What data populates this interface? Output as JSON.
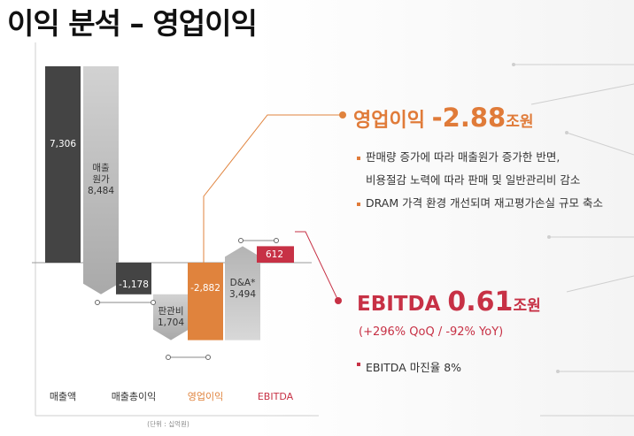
{
  "page": {
    "title": "이익 분석 – 영업이익"
  },
  "chart_data": {
    "type": "waterfall",
    "unit_note": "(단위 : 십억원)",
    "categories": [
      "매출액",
      "매출총이익",
      "영업이익",
      "EBITDA"
    ],
    "steps": [
      {
        "label": "",
        "value": 7306,
        "value_text": "7,306",
        "kind": "total",
        "color": "#444444"
      },
      {
        "label": "매출\n원가",
        "value": -8484,
        "value_text": "8,484",
        "kind": "decrease",
        "color": "#c8c8c8"
      },
      {
        "label": "",
        "value": -1178,
        "value_text": "-1,178",
        "kind": "subtotal",
        "color": "#444444"
      },
      {
        "label": "판관비",
        "value": -1704,
        "value_text": "1,704",
        "kind": "decrease",
        "color": "#c8c8c8"
      },
      {
        "label": "",
        "value": -2882,
        "value_text": "-2,882",
        "kind": "subtotal",
        "color": "#e0833d"
      },
      {
        "label": "D&A*",
        "value": 3494,
        "value_text": "3,494",
        "kind": "increase",
        "color": "#c8c8c8"
      },
      {
        "label": "",
        "value": 612,
        "value_text": "612",
        "kind": "total",
        "color": "#c73145"
      }
    ]
  },
  "highlights": {
    "operating_profit": {
      "label": "영업이익",
      "value": "-2.88",
      "unit": "조원",
      "color": "#e07b39"
    },
    "ebitda": {
      "label": "EBITDA",
      "value": "0.61",
      "unit": "조원",
      "sub": "(+296% QoQ / -92% YoY)",
      "color": "#c73145"
    }
  },
  "bullets": [
    {
      "text": "판매량 증가에 따라 매출원가 증가한 반면,",
      "dot": true
    },
    {
      "text": "비용절감 노력에 따라 판매 및 일반관리비 감소",
      "dot": false
    },
    {
      "text": "DRAM 가격 환경 개선되며 재고평가손실 규모 축소",
      "dot": true
    }
  ],
  "ebitda_bullet": "EBITDA 마진율 8%"
}
